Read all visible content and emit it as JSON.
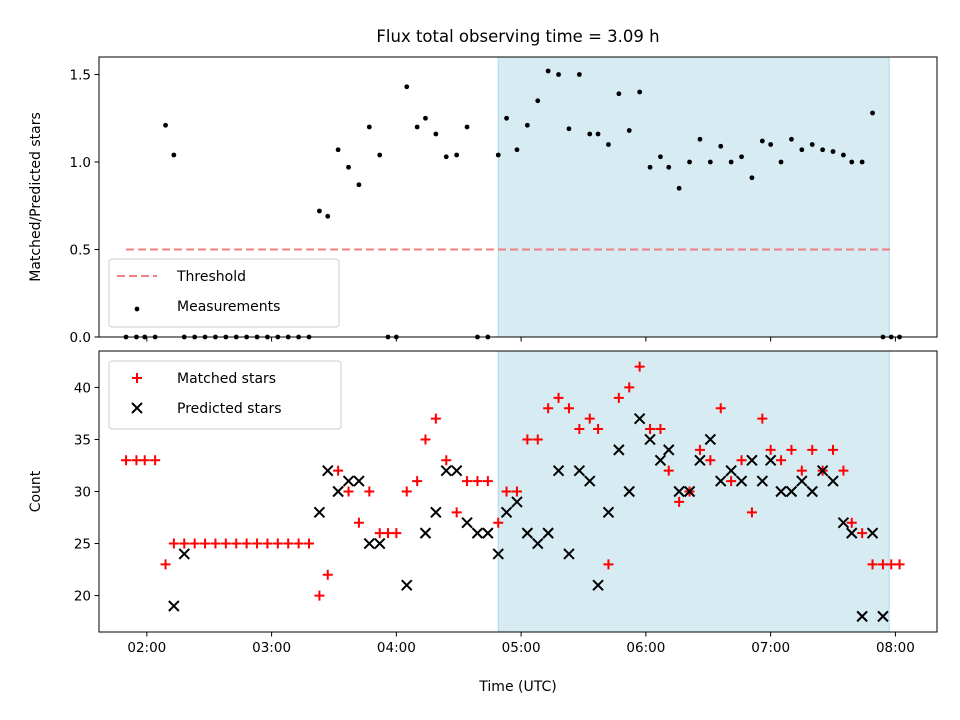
{
  "figure": {
    "title": "Flux total observing time = 3.09 h",
    "xlabel": "Time (UTC)",
    "xticks": [
      "02:00",
      "03:00",
      "04:00",
      "05:00",
      "06:00",
      "07:00",
      "08:00"
    ]
  },
  "chart_data": [
    {
      "type": "scatter",
      "ylabel": "Matched/Predicted stars",
      "xlim": [
        "01:37",
        "08:20"
      ],
      "ylim": [
        0,
        1.6
      ],
      "yticks": [
        "0.0",
        "0.5",
        "1.0",
        "1.5"
      ],
      "grid": false,
      "legend_position": "lower-left",
      "shaded_interval": [
        "04:49",
        "07:57"
      ],
      "series": [
        {
          "name": "Threshold",
          "style": "dashed-line",
          "color": "#f08080",
          "x": [
            "01:50",
            "07:59"
          ],
          "y": [
            0.5,
            0.5
          ]
        },
        {
          "name": "Measurements",
          "style": "dot",
          "color": "#000000",
          "x": [
            "01:50",
            "01:55",
            "01:59",
            "02:04",
            "02:09",
            "02:13",
            "02:18",
            "02:23",
            "02:28",
            "02:33",
            "02:38",
            "02:43",
            "02:48",
            "02:53",
            "02:58",
            "03:03",
            "03:08",
            "03:13",
            "03:18",
            "03:23",
            "03:27",
            "03:32",
            "03:37",
            "03:42",
            "03:47",
            "03:52",
            "03:56",
            "04:00",
            "04:05",
            "04:10",
            "04:14",
            "04:19",
            "04:24",
            "04:29",
            "04:34",
            "04:39",
            "04:44",
            "04:49",
            "04:53",
            "04:58",
            "05:03",
            "05:08",
            "05:13",
            "05:18",
            "05:23",
            "05:28",
            "05:33",
            "05:37",
            "05:42",
            "05:47",
            "05:52",
            "05:57",
            "06:02",
            "06:07",
            "06:11",
            "06:16",
            "06:21",
            "06:26",
            "06:31",
            "06:36",
            "06:41",
            "06:46",
            "06:51",
            "06:56",
            "07:00",
            "07:05",
            "07:10",
            "07:15",
            "07:20",
            "07:25",
            "07:30",
            "07:35",
            "07:39",
            "07:44",
            "07:49",
            "07:54",
            "07:58",
            "08:02"
          ],
          "y": [
            0,
            0,
            0,
            0,
            1.21,
            1.04,
            0,
            0,
            0,
            0,
            0,
            0,
            0,
            0,
            0,
            0,
            0,
            0,
            0,
            0.72,
            0.69,
            1.07,
            0.97,
            0.87,
            1.2,
            1.04,
            0,
            0,
            1.43,
            1.2,
            1.25,
            1.16,
            1.03,
            1.04,
            1.2,
            0,
            0,
            1.04,
            1.25,
            1.07,
            1.21,
            1.35,
            1.52,
            1.5,
            1.19,
            1.5,
            1.16,
            1.16,
            1.1,
            1.39,
            1.18,
            1.4,
            0.97,
            1.03,
            0.97,
            0.85,
            1.0,
            1.13,
            1.0,
            1.09,
            1.0,
            1.03,
            0.91,
            1.12,
            1.1,
            1.0,
            1.13,
            1.07,
            1.1,
            1.07,
            1.06,
            1.04,
            1.0,
            1.0,
            1.28,
            0,
            0,
            0
          ]
        }
      ]
    },
    {
      "type": "scatter",
      "ylabel": "Count",
      "xlim": [
        "01:37",
        "08:20"
      ],
      "ylim": [
        16.5,
        43.5
      ],
      "yticks": [
        "20",
        "25",
        "30",
        "35",
        "40"
      ],
      "grid": false,
      "legend_position": "upper-left",
      "shaded_interval": [
        "04:49",
        "07:57"
      ],
      "series": [
        {
          "name": "Matched stars",
          "style": "plus",
          "color": "#ff0000",
          "x": [
            "01:50",
            "01:55",
            "01:59",
            "02:04",
            "02:09",
            "02:13",
            "02:18",
            "02:23",
            "02:28",
            "02:33",
            "02:38",
            "02:43",
            "02:48",
            "02:53",
            "02:58",
            "03:03",
            "03:08",
            "03:13",
            "03:18",
            "03:23",
            "03:27",
            "03:32",
            "03:37",
            "03:42",
            "03:47",
            "03:52",
            "03:56",
            "04:00",
            "04:05",
            "04:10",
            "04:14",
            "04:19",
            "04:24",
            "04:29",
            "04:34",
            "04:39",
            "04:44",
            "04:49",
            "04:53",
            "04:58",
            "05:03",
            "05:08",
            "05:13",
            "05:18",
            "05:23",
            "05:28",
            "05:33",
            "05:37",
            "05:42",
            "05:47",
            "05:52",
            "05:57",
            "06:02",
            "06:07",
            "06:11",
            "06:16",
            "06:21",
            "06:26",
            "06:31",
            "06:36",
            "06:41",
            "06:46",
            "06:51",
            "06:56",
            "07:00",
            "07:05",
            "07:10",
            "07:15",
            "07:20",
            "07:25",
            "07:30",
            "07:35",
            "07:39",
            "07:44",
            "07:49",
            "07:54",
            "07:58",
            "08:02"
          ],
          "y": [
            33,
            33,
            33,
            33,
            23,
            25,
            25,
            25,
            25,
            25,
            25,
            25,
            25,
            25,
            25,
            25,
            25,
            25,
            25,
            20,
            22,
            32,
            30,
            27,
            30,
            26,
            26,
            26,
            30,
            31,
            35,
            37,
            33,
            28,
            31,
            31,
            31,
            27,
            30,
            30,
            35,
            35,
            38,
            39,
            38,
            36,
            37,
            36,
            23,
            39,
            40,
            42,
            36,
            36,
            32,
            29,
            30,
            34,
            33,
            38,
            31,
            33,
            28,
            37,
            34,
            33,
            34,
            32,
            34,
            32,
            34,
            32,
            27,
            26,
            23,
            23,
            23,
            23
          ]
        },
        {
          "name": "Predicted stars",
          "style": "cross",
          "color": "#000000",
          "x": [
            "02:13",
            "02:18",
            "03:23",
            "03:27",
            "03:32",
            "03:37",
            "03:42",
            "03:47",
            "03:52",
            "04:05",
            "04:14",
            "04:19",
            "04:24",
            "04:29",
            "04:34",
            "04:39",
            "04:44",
            "04:49",
            "04:53",
            "04:58",
            "05:03",
            "05:08",
            "05:13",
            "05:18",
            "05:23",
            "05:28",
            "05:33",
            "05:37",
            "05:42",
            "05:47",
            "05:52",
            "05:57",
            "06:02",
            "06:07",
            "06:11",
            "06:16",
            "06:21",
            "06:26",
            "06:31",
            "06:36",
            "06:41",
            "06:46",
            "06:51",
            "06:56",
            "07:00",
            "07:05",
            "07:10",
            "07:15",
            "07:20",
            "07:25",
            "07:30",
            "07:35",
            "07:39",
            "07:44",
            "07:49",
            "07:54"
          ],
          "y": [
            19,
            24,
            28,
            32,
            30,
            31,
            31,
            25,
            25,
            21,
            26,
            28,
            32,
            32,
            27,
            26,
            26,
            24,
            28,
            29,
            26,
            25,
            26,
            32,
            24,
            32,
            31,
            21,
            28,
            34,
            30,
            37,
            35,
            33,
            34,
            30,
            30,
            33,
            35,
            31,
            32,
            31,
            33,
            31,
            33,
            30,
            30,
            31,
            30,
            32,
            31,
            27,
            26,
            18,
            26,
            18
          ]
        }
      ]
    }
  ]
}
